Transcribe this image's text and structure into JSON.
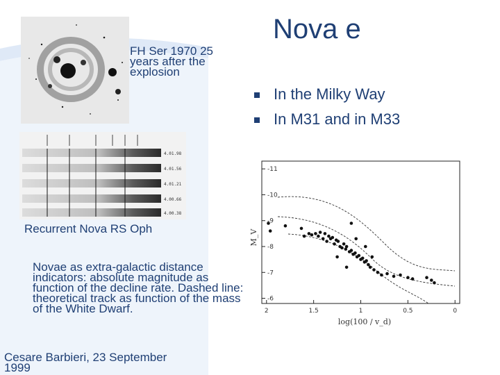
{
  "title": "Nova e",
  "bullets": [
    "In the Milky Way",
    "In M31 and in M33"
  ],
  "nebula_caption": "FH Ser 1970 25 years after the explosion",
  "spectra_caption": "Recurrent Nova RS Oph",
  "description": "Novae as extra-galactic distance indicators: absolute magnitude as function of the decline rate. Dashed line: theoretical track as function of the mass of the White Dwarf.",
  "footer": "Cesare Barbieri, 23 September 1999",
  "spectra_labels": [
    "4.01.98",
    "4.01.56",
    "4.01.21",
    "4.00.66",
    "4.00.38"
  ],
  "chart_data": {
    "type": "scatter",
    "xlabel": "log(100 / v_d)",
    "ylabel": "M_V",
    "x_ticks": [
      "2",
      "1.5",
      "1",
      "0.5",
      "0"
    ],
    "y_ticks": [
      "-11",
      "-10",
      "-9",
      "-8",
      "-7",
      "-6"
    ],
    "xlim": [
      2.05,
      -0.05
    ],
    "ylim": [
      -11.3,
      -5.8
    ],
    "points": [
      [
        1.98,
        -8.9
      ],
      [
        1.96,
        -8.6
      ],
      [
        1.8,
        -8.8
      ],
      [
        1.63,
        -8.7
      ],
      [
        1.6,
        -8.4
      ],
      [
        1.55,
        -8.5
      ],
      [
        1.52,
        -8.45
      ],
      [
        1.48,
        -8.5
      ],
      [
        1.45,
        -8.4
      ],
      [
        1.43,
        -8.55
      ],
      [
        1.4,
        -8.3
      ],
      [
        1.38,
        -8.5
      ],
      [
        1.36,
        -8.2
      ],
      [
        1.34,
        -8.4
      ],
      [
        1.32,
        -8.3
      ],
      [
        1.3,
        -8.35
      ],
      [
        1.28,
        -8.1
      ],
      [
        1.26,
        -8.25
      ],
      [
        1.24,
        -8.2
      ],
      [
        1.22,
        -8.0
      ],
      [
        1.2,
        -7.95
      ],
      [
        1.18,
        -8.1
      ],
      [
        1.16,
        -7.9
      ],
      [
        1.15,
        -8.0
      ],
      [
        1.12,
        -7.8
      ],
      [
        1.1,
        -7.85
      ],
      [
        1.08,
        -7.7
      ],
      [
        1.06,
        -7.75
      ],
      [
        1.04,
        -7.6
      ],
      [
        1.02,
        -7.65
      ],
      [
        1.0,
        -7.5
      ],
      [
        0.98,
        -7.55
      ],
      [
        0.96,
        -7.4
      ],
      [
        0.94,
        -7.45
      ],
      [
        0.92,
        -7.3
      ],
      [
        0.9,
        -7.2
      ],
      [
        0.86,
        -7.1
      ],
      [
        0.82,
        -7.0
      ],
      [
        0.78,
        -6.9
      ],
      [
        0.72,
        -6.95
      ],
      [
        0.65,
        -6.85
      ],
      [
        0.58,
        -6.9
      ],
      [
        0.5,
        -6.8
      ],
      [
        0.45,
        -6.75
      ],
      [
        0.3,
        -6.8
      ],
      [
        0.25,
        -6.7
      ],
      [
        0.22,
        -6.6
      ],
      [
        1.25,
        -7.6
      ],
      [
        1.05,
        -8.3
      ],
      [
        0.95,
        -8.0
      ],
      [
        1.15,
        -7.2
      ],
      [
        0.88,
        -7.6
      ],
      [
        1.1,
        -8.9
      ]
    ]
  }
}
